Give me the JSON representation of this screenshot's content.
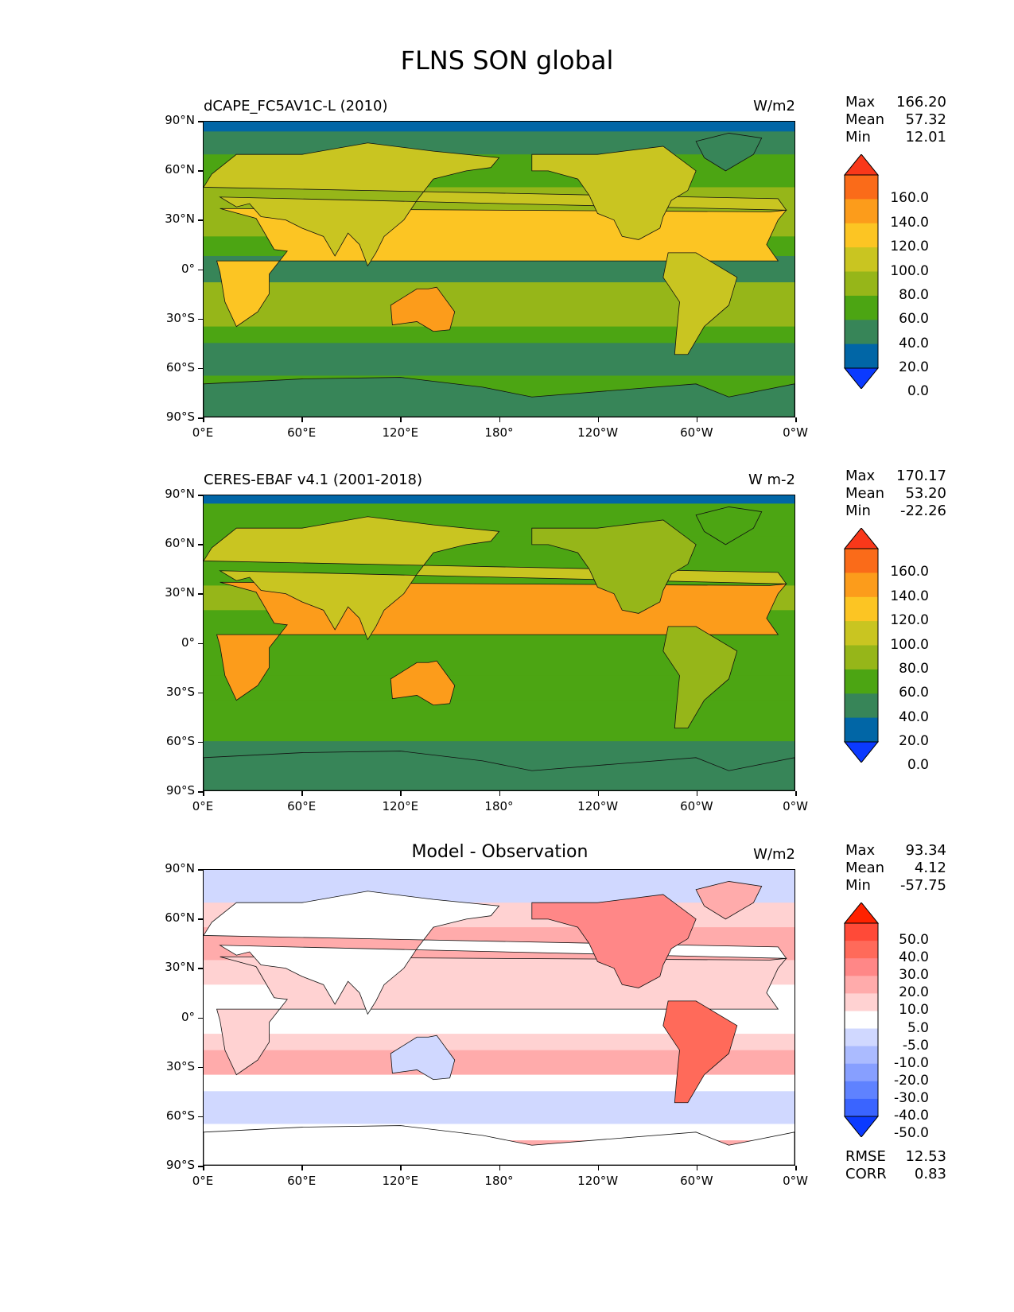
{
  "page_title": "FLNS SON global",
  "lat_labels": [
    "90°N",
    "60°N",
    "30°N",
    "0°",
    "30°S",
    "60°S",
    "90°S"
  ],
  "lon_labels": [
    "0°E",
    "60°E",
    "120°E",
    "180°",
    "120°W",
    "60°W",
    "0°W"
  ],
  "panels": [
    {
      "title_left": "dCAPE_FC5AV1C-L (2010)",
      "title_center": "",
      "units": "W/m2",
      "stats": {
        "max_label": "Max",
        "max": "166.20",
        "mean_label": "Mean",
        "mean": "57.32",
        "min_label": "Min",
        "min": "12.01"
      },
      "colorbar_labels": [
        "160.0",
        "140.0",
        "120.0",
        "100.0",
        "80.0",
        "60.0",
        "40.0",
        "20.0",
        "0.0"
      ],
      "colorbar_colors": [
        "#0b3aff",
        "#0166a6",
        "#378558",
        "#4ca513",
        "#96b619",
        "#c9c521",
        "#fcc523",
        "#fc9c1b",
        "#fa6b19",
        "#f9381a"
      ]
    },
    {
      "title_left": "CERES-EBAF v4.1 (2001-2018)",
      "title_center": "",
      "units": "W m-2",
      "stats": {
        "max_label": "Max",
        "max": "170.17",
        "mean_label": "Mean",
        "mean": "53.20",
        "min_label": "Min",
        "min": "-22.26"
      },
      "colorbar_labels": [
        "160.0",
        "140.0",
        "120.0",
        "100.0",
        "80.0",
        "60.0",
        "40.0",
        "20.0",
        "0.0"
      ],
      "colorbar_colors": [
        "#0b3aff",
        "#0166a6",
        "#378558",
        "#4ca513",
        "#96b619",
        "#c9c521",
        "#fcc523",
        "#fc9c1b",
        "#fa6b19",
        "#f9381a"
      ]
    },
    {
      "title_left": "",
      "title_center": "Model - Observation",
      "units": "W/m2",
      "stats": {
        "max_label": "Max",
        "max": "93.34",
        "mean_label": "Mean",
        "mean": "4.12",
        "min_label": "Min",
        "min": "-57.75"
      },
      "colorbar_labels": [
        "50.0",
        "40.0",
        "30.0",
        "20.0",
        "10.0",
        "5.0",
        "-5.0",
        "-10.0",
        "-20.0",
        "-30.0",
        "-40.0",
        "-50.0"
      ],
      "colorbar_colors": [
        "#0b3aff",
        "#3a64ff",
        "#5f82ff",
        "#879fff",
        "#abbbff",
        "#d0d8ff",
        "#ffffff",
        "#ffd2d2",
        "#ffabab",
        "#ff8787",
        "#ff6a5a",
        "#ff4a38",
        "#ff2200"
      ],
      "footer": {
        "rmse_label": "RMSE",
        "rmse": "12.53",
        "corr_label": "CORR",
        "corr": "0.83"
      }
    }
  ]
}
